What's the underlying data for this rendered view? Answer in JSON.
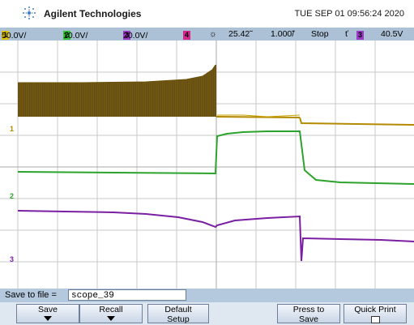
{
  "header": {
    "brand": "Agilent Technologies",
    "datetime": "TUE SEP 01 09:56:24 2020"
  },
  "status_bar": {
    "ch1_num": "1",
    "ch1_scale": "50.0V/",
    "ch2_num": "2",
    "ch2_scale": "10.0V/",
    "ch3_num": "3",
    "ch3_scale": "20.0V/",
    "ch4_num": "4",
    "time_pos": "25.42̃",
    "time_scale": "1.000̃/",
    "run_state": "Stop",
    "trigger_mode_glyph": "ť",
    "trigger_ch": "3",
    "trigger_level": "40.5V"
  },
  "channel_markers": {
    "ch1": "1",
    "ch2": "2",
    "ch3": "3"
  },
  "save_bar": {
    "label": "Save to file =",
    "filename": "scope_39"
  },
  "softkeys": [
    {
      "label": "Save",
      "arrow": true
    },
    {
      "label": "Recall",
      "arrow": true
    },
    {
      "label": "Default Setup",
      "line1": "Default",
      "line2": "Setup"
    },
    {
      "label": "Press to Save",
      "line1": "Press to",
      "line2": "Save"
    },
    {
      "label": "Quick Print",
      "line1": "Quick Print",
      "box": true
    }
  ],
  "colors": {
    "ch1": "#b38a00",
    "ch2": "#2ca32c",
    "ch3": "#7a1fa2",
    "ch4": "#c0007a",
    "bar_bg": "#acc0d6"
  }
}
